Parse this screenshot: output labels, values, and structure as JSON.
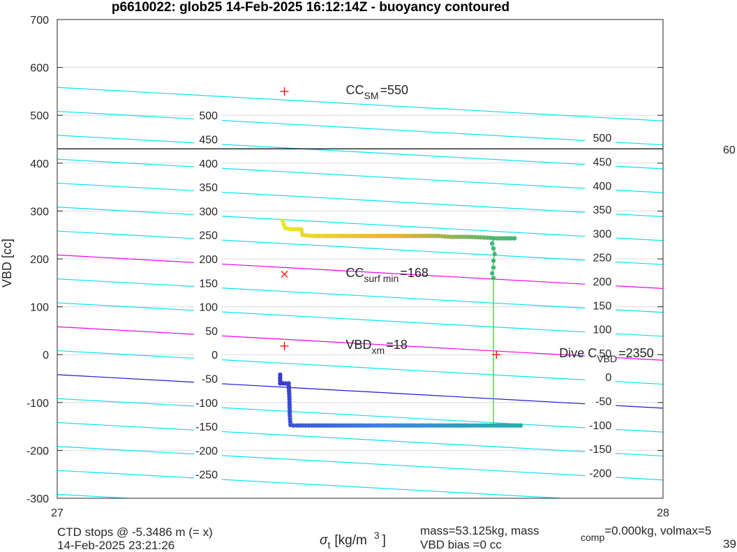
{
  "chart_data": {
    "type": "scatter",
    "title": "p6610022: glob25 14-Feb-2025 16:12:14Z - buoyancy contoured",
    "xlabel_main": "σ",
    "xlabel_sub": "t",
    "xlabel_unit": "[kg/m",
    "xlabel_exp": "3",
    "xlabel_close": "]",
    "ylabel": "VBD [cc]",
    "xlim": [
      27,
      28
    ],
    "ylim": [
      -300,
      700
    ],
    "x_ticks": [
      "27",
      "28"
    ],
    "y_ticks": [
      "700",
      "600",
      "500",
      "400",
      "300",
      "200",
      "100",
      "0",
      "-100",
      "-200",
      "-300"
    ],
    "y_tick_values": [
      700,
      600,
      500,
      400,
      300,
      200,
      100,
      0,
      -100,
      -200,
      -300
    ],
    "grid": true,
    "contours": {
      "levels": [
        500,
        450,
        400,
        350,
        300,
        250,
        200,
        150,
        100,
        50,
        0,
        -50,
        -100,
        -150,
        -200,
        -250
      ],
      "labels": [
        "500",
        "450",
        "400",
        "350",
        "300",
        "250",
        "200",
        "150",
        "100",
        "50",
        "0",
        "-50",
        "-100",
        "-150",
        "-200",
        "-250"
      ],
      "labels_right": [
        "500",
        "450",
        "400",
        "350",
        "300",
        "250",
        "200",
        "150",
        "100",
        "50",
        "0",
        "-50",
        "-100",
        "-150",
        "-200"
      ],
      "level_color": "#00e5ee",
      "highlight_color": "#ee00ee",
      "zero_color": "#1a1ad0"
    },
    "reference_line": {
      "y": 430,
      "color": "#000000"
    },
    "right_edge_text": "60",
    "markers": [
      {
        "x": 27.375,
        "y": 550,
        "symbol": "+",
        "label_main": "CC",
        "label_sub": "SM",
        "label_rest": "=550"
      },
      {
        "x": 27.375,
        "y": 168,
        "symbol": "x",
        "label_main": "CC",
        "label_sub": "surf min",
        "label_rest": "=168"
      },
      {
        "x": 27.375,
        "y": 18,
        "symbol": "+",
        "label_main": "VBD",
        "label_sub": "xm",
        "label_rest": "=18"
      },
      {
        "x": 27.725,
        "y": 0,
        "symbol": "+",
        "label_main": "Dive C",
        "label_sub": "VBD",
        "label_rest": "=2350"
      }
    ],
    "upper_series": {
      "color_start": "#e8e82a",
      "color_mid": "#f0b030",
      "color_end": "#3fb878",
      "points": [
        [
          27.372,
          280
        ],
        [
          27.374,
          272
        ],
        [
          27.376,
          265
        ],
        [
          27.385,
          262
        ],
        [
          27.395,
          262
        ],
        [
          27.403,
          262
        ],
        [
          27.405,
          250
        ],
        [
          27.42,
          248
        ],
        [
          27.45,
          248
        ],
        [
          27.5,
          248
        ],
        [
          27.55,
          248
        ],
        [
          27.6,
          248
        ],
        [
          27.63,
          248
        ],
        [
          27.65,
          246
        ],
        [
          27.68,
          246
        ],
        [
          27.7,
          245
        ],
        [
          27.715,
          244
        ],
        [
          27.72,
          243
        ],
        [
          27.73,
          243
        ],
        [
          27.755,
          243
        ]
      ],
      "descent": [
        [
          27.72,
          243
        ],
        [
          27.718,
          232
        ],
        [
          27.72,
          222
        ],
        [
          27.722,
          210
        ],
        [
          27.72,
          196
        ],
        [
          27.72,
          182
        ],
        [
          27.718,
          170
        ],
        [
          27.72,
          160
        ]
      ]
    },
    "lower_series": {
      "color_start": "#3b38c8",
      "color_mid": "#3f7fe8",
      "color_end": "#25b0a8",
      "points": [
        [
          27.368,
          -42
        ],
        [
          27.368,
          -60
        ],
        [
          27.382,
          -60
        ],
        [
          27.383,
          -82
        ],
        [
          27.384,
          -128
        ],
        [
          27.385,
          -147
        ],
        [
          27.39,
          -148
        ],
        [
          27.4,
          -148
        ],
        [
          27.42,
          -148
        ],
        [
          27.45,
          -148
        ],
        [
          27.5,
          -148
        ],
        [
          27.55,
          -148
        ],
        [
          27.6,
          -148
        ],
        [
          27.65,
          -148
        ],
        [
          27.68,
          -148
        ],
        [
          27.7,
          -148
        ],
        [
          27.715,
          -148
        ],
        [
          27.725,
          -148
        ],
        [
          27.765,
          -148
        ]
      ]
    },
    "connector_color": "#22dd22"
  },
  "footer": {
    "ctd_stops": "CTD stops @ -5.3486 m (= x)",
    "date": "14-Feb-2025 23:21:26",
    "mass_line": "mass=53.125kg, mass",
    "mass_sub": "comp",
    "mass_rest": "=0.000kg, volmax=5",
    "vbd_bias": "VBD bias =0 cc",
    "right_number": "39"
  }
}
